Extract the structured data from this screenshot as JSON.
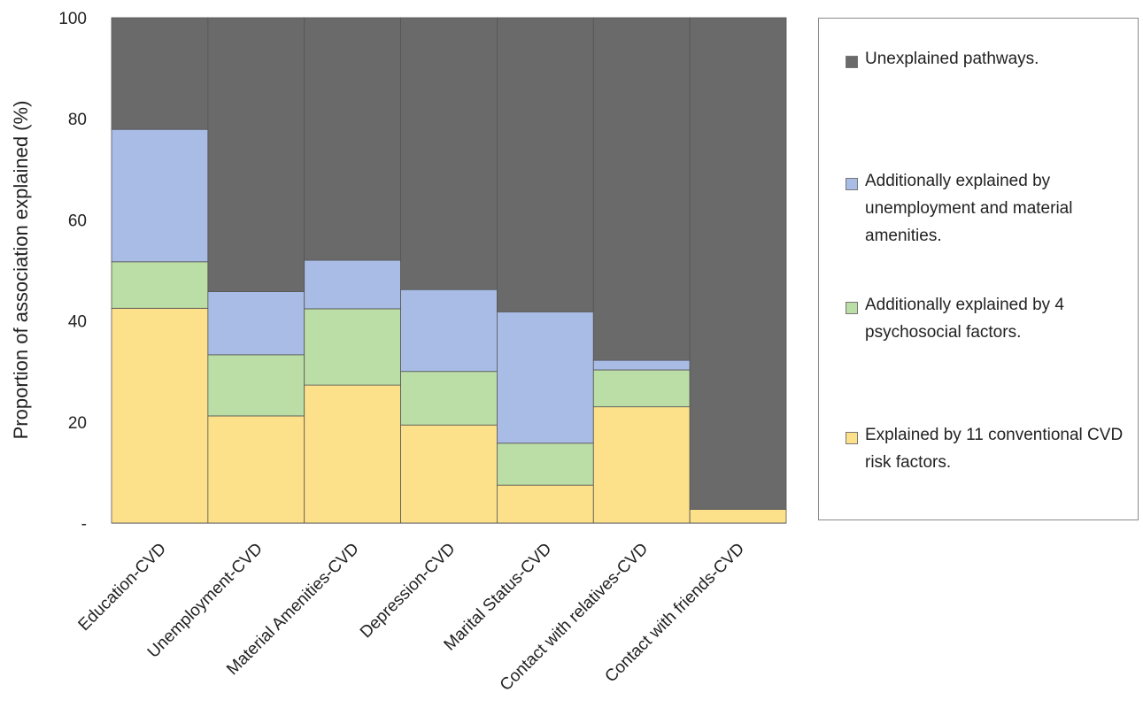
{
  "chart_data": {
    "type": "bar",
    "stacked": true,
    "ylabel": "Proportion of association explained (%)",
    "xlabel": "",
    "ylim": [
      0,
      100
    ],
    "yticks": [
      {
        "value": 0,
        "label": "-"
      },
      {
        "value": 20,
        "label": "20"
      },
      {
        "value": 40,
        "label": "40"
      },
      {
        "value": 60,
        "label": "60"
      },
      {
        "value": 80,
        "label": "80"
      },
      {
        "value": 100,
        "label": "100"
      }
    ],
    "grid": false,
    "legend_position": "right",
    "categories": [
      "Education-CVD",
      "Unemployment-CVD",
      "Material Amenities-CVD",
      "Depression-CVD",
      "Marital Status-CVD",
      "Contact with relatives-CVD",
      "Contact with friends-CVD"
    ],
    "series": [
      {
        "name": "Explained by 11 conventional CVD risk factors.",
        "color": "#FDE08A",
        "values": [
          42.5,
          21.2,
          27.3,
          19.4,
          7.5,
          23.0,
          2.7
        ]
      },
      {
        "name": "Additionally explained by 4 psychosocial factors.",
        "color": "#BBDDA6",
        "values": [
          9.2,
          12.1,
          15.1,
          10.6,
          8.3,
          7.3,
          0
        ]
      },
      {
        "name": "Additionally explained by unemployment and material amenities.",
        "color": "#A9BCE5",
        "values": [
          26.2,
          12.5,
          9.6,
          16.2,
          26.0,
          1.9,
          0
        ]
      },
      {
        "name": "Unexplained pathways.",
        "color": "#6A6A6A",
        "values": [
          22.1,
          54.2,
          48.0,
          53.8,
          58.2,
          67.8,
          97.3
        ]
      }
    ],
    "legend_order": [
      3,
      2,
      1,
      0
    ]
  }
}
